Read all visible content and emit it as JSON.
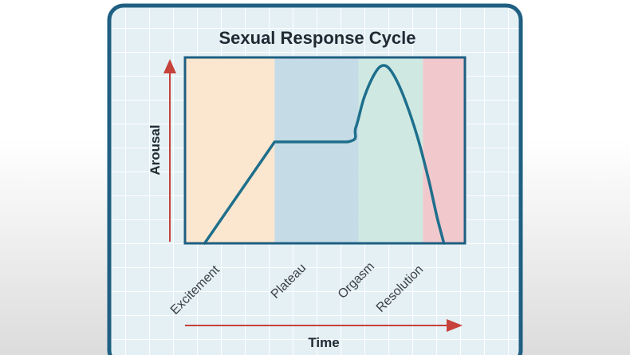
{
  "title": "Sexual Response Cycle",
  "axes": {
    "y_label": "Arousal",
    "x_label": "Time"
  },
  "colors": {
    "frame": "#1f5f82",
    "grid_background": "#e4f0f4",
    "curve": "#1e6f8c",
    "arrow": "#c6423a",
    "excitement": "#fbe6cf",
    "plateau": "#c5dbe6",
    "orgasm": "#cfe9e2",
    "resolution": "#f1c8cc"
  },
  "phases": [
    {
      "name": "Excitement",
      "start": 0.0,
      "end": 0.32,
      "color": "#fbe6cf"
    },
    {
      "name": "Plateau",
      "start": 0.32,
      "end": 0.62,
      "color": "#c5dbe6"
    },
    {
      "name": "Orgasm",
      "start": 0.62,
      "end": 0.85,
      "color": "#cfe9e2"
    },
    {
      "name": "Resolution",
      "start": 0.85,
      "end": 1.0,
      "color": "#f1c8cc"
    }
  ],
  "curve_points": [
    {
      "t": 0.07,
      "a": 0.0
    },
    {
      "t": 0.32,
      "a": 0.57
    },
    {
      "t": 0.58,
      "a": 0.57
    },
    {
      "t": 0.61,
      "a": 0.65
    },
    {
      "t": 0.64,
      "a": 0.82
    },
    {
      "t": 0.68,
      "a": 0.96
    },
    {
      "t": 0.71,
      "a": 1.0
    },
    {
      "t": 0.74,
      "a": 0.96
    },
    {
      "t": 0.78,
      "a": 0.83
    },
    {
      "t": 0.83,
      "a": 0.6
    },
    {
      "t": 0.87,
      "a": 0.36
    },
    {
      "t": 0.9,
      "a": 0.15
    },
    {
      "t": 0.925,
      "a": 0.0
    }
  ]
}
